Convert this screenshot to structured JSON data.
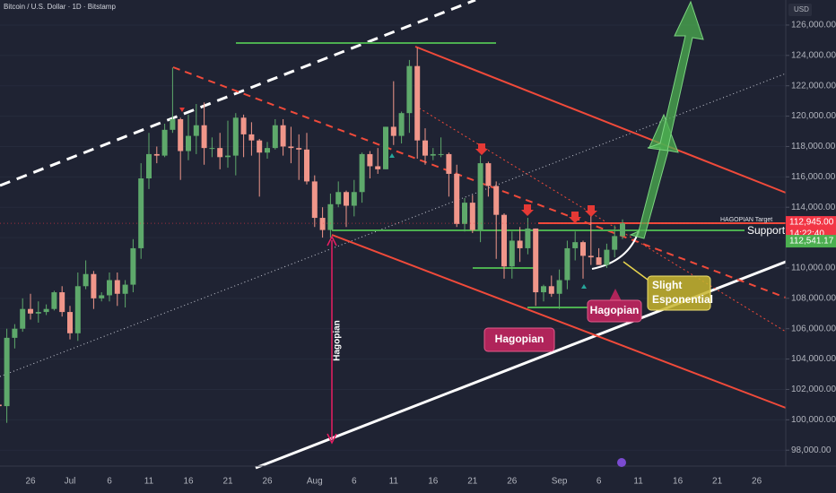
{
  "chart_data": {
    "type": "candlestick",
    "title": "Bitcoin / U.S. Dollar · 1D · Bitstamp",
    "currency": "USD",
    "categories": [
      null,
      null,
      null,
      null,
      "26",
      null,
      null,
      null,
      null,
      "Jul",
      null,
      null,
      null,
      null,
      "6",
      null,
      null,
      null,
      null,
      "11",
      null,
      null,
      null,
      null,
      "16",
      null,
      null,
      null,
      null,
      "21",
      null,
      null,
      null,
      null,
      "26",
      null,
      null,
      null,
      null,
      null,
      "Aug",
      null,
      null,
      null,
      null,
      "6",
      null,
      null,
      null,
      null,
      "11",
      null,
      null,
      null,
      null,
      "16",
      null,
      null,
      null,
      null,
      "21",
      null,
      null,
      null,
      null,
      "26",
      null,
      null,
      null,
      null,
      null,
      "Sep",
      null,
      null,
      null,
      null,
      "6",
      null,
      null,
      null,
      null,
      "11",
      null,
      null,
      null,
      null,
      "16",
      null,
      null,
      null,
      null,
      "21",
      null,
      null,
      null,
      null,
      "26",
      null,
      null,
      null,
      null
    ],
    "open": [
      101000,
      100900,
      105400,
      106000,
      107300,
      107000,
      107100,
      107300,
      108400,
      107100,
      105700,
      108800,
      109600,
      108000,
      108200,
      109200,
      108300,
      108900,
      111300,
      115900,
      117500,
      117400,
      119100,
      119800,
      117700,
      118700,
      119400,
      117900,
      117900,
      117300,
      117400,
      119900,
      118800,
      118400,
      117600,
      117900,
      119400,
      118000,
      117900,
      117800,
      115700,
      113300,
      112500,
      114200,
      115000,
      114100,
      115000,
      117500,
      116700,
      116500,
      119300,
      118700,
      120200,
      123300,
      118400,
      117400,
      117500,
      117500,
      116200,
      112900,
      114300,
      112500,
      116900,
      115400,
      113500,
      110100,
      111800,
      111300,
      112600,
      108400,
      108800,
      108300,
      109200,
      111300,
      111700,
      110800,
      110700,
      110200,
      111200,
      112100,
      null,
      null,
      null,
      null,
      null,
      null,
      null,
      null,
      null,
      null,
      null,
      null,
      null,
      null,
      null,
      null,
      null,
      null,
      null,
      null,
      null
    ],
    "high": [
      103900,
      106000,
      106300,
      108000,
      108300,
      107800,
      107600,
      108500,
      108800,
      107500,
      109700,
      110500,
      109800,
      108400,
      109700,
      109700,
      109200,
      111900,
      116900,
      118900,
      118000,
      119500,
      123200,
      119900,
      120100,
      120800,
      120900,
      118600,
      118900,
      119700,
      120200,
      120100,
      119600,
      118500,
      118300,
      119800,
      119800,
      119300,
      118800,
      118900,
      116100,
      114000,
      114900,
      115700,
      115100,
      115800,
      117600,
      117700,
      117900,
      119300,
      122300,
      120300,
      123700,
      124500,
      119200,
      117900,
      118600,
      117600,
      116800,
      114600,
      114800,
      117400,
      117000,
      115700,
      113600,
      112400,
      112700,
      113300,
      112600,
      108900,
      109500,
      109900,
      111800,
      112400,
      111800,
      113400,
      111300,
      111600,
      112800,
      113200,
      null,
      null,
      null,
      null,
      null,
      null,
      null,
      null,
      null,
      null,
      null,
      null,
      null,
      null,
      null,
      null,
      null,
      null,
      null,
      null,
      null
    ],
    "low": [
      99600,
      99800,
      104700,
      105800,
      106600,
      106400,
      106900,
      107200,
      106800,
      105300,
      105200,
      108600,
      107300,
      107800,
      107800,
      107500,
      107400,
      108400,
      110600,
      115200,
      116900,
      117300,
      118900,
      115800,
      117100,
      117500,
      116800,
      117300,
      116500,
      116600,
      116100,
      117300,
      117400,
      114700,
      117200,
      117800,
      117400,
      116900,
      115800,
      115500,
      112700,
      112000,
      112000,
      114000,
      112700,
      113400,
      114300,
      115900,
      116200,
      116500,
      118100,
      118200,
      118900,
      117200,
      116800,
      117100,
      117300,
      114700,
      112700,
      112400,
      112300,
      111700,
      114700,
      110600,
      109300,
      109300,
      110400,
      110900,
      107500,
      107800,
      108100,
      107300,
      108600,
      110500,
      109300,
      110200,
      110200,
      110000,
      110700,
      111900,
      null,
      null,
      null,
      null,
      null,
      null,
      null,
      null,
      null,
      null,
      null,
      null,
      null,
      null,
      null,
      null,
      null,
      null,
      null,
      null,
      null
    ],
    "close": [
      100900,
      105400,
      106000,
      107300,
      107000,
      107100,
      107300,
      108400,
      107100,
      105700,
      108800,
      109600,
      108000,
      108200,
      109200,
      108300,
      108900,
      111300,
      115900,
      117500,
      117400,
      119100,
      119800,
      117700,
      118700,
      119400,
      117900,
      117900,
      117300,
      117400,
      119900,
      118800,
      118400,
      117600,
      117900,
      119400,
      118000,
      117900,
      117800,
      115700,
      113300,
      112500,
      114200,
      115000,
      114100,
      115000,
      117500,
      116700,
      116500,
      119300,
      118700,
      120200,
      123300,
      118400,
      117400,
      117500,
      117500,
      116200,
      112900,
      114300,
      112500,
      116900,
      115400,
      113500,
      110100,
      111800,
      111300,
      112600,
      108400,
      108800,
      108300,
      109200,
      111300,
      111700,
      110800,
      110700,
      110200,
      111200,
      112100,
      112945,
      null,
      null,
      null,
      null,
      null,
      null,
      null,
      null,
      null,
      null,
      null,
      null,
      null,
      null,
      null,
      null,
      null,
      null,
      null,
      null,
      null
    ],
    "up_color": "#5ea96b",
    "down_color": "#f0968a",
    "ylim": [
      96950,
      127650
    ],
    "yticks": [
      {
        "value": 98000,
        "label": "98,000.00"
      },
      {
        "value": 100000,
        "label": "100,000.00"
      },
      {
        "value": 102000,
        "label": "102,000.00"
      },
      {
        "value": 104000,
        "label": "104,000.00"
      },
      {
        "value": 106000,
        "label": "106,000.00"
      },
      {
        "value": 108000,
        "label": "108,000.00"
      },
      {
        "value": 110000,
        "label": "110,000.00"
      },
      {
        "value": 112000,
        "label": "112,000.00"
      },
      {
        "value": 114000,
        "label": "114,000.00"
      },
      {
        "value": 116000,
        "label": "116,000.00"
      },
      {
        "value": 118000,
        "label": "118,000.00"
      },
      {
        "value": 120000,
        "label": "120,000.00"
      },
      {
        "value": 122000,
        "label": "122,000.00"
      },
      {
        "value": 124000,
        "label": "124,000.00"
      },
      {
        "value": 126000,
        "label": "126,000.00"
      }
    ],
    "grid": true,
    "last_price": {
      "value": 112945,
      "label": "112,945.00"
    },
    "countdown": "14:22:40",
    "support_price": {
      "value": 112541.17,
      "label": "112,541.17"
    },
    "annotations": {
      "target": "HAGOPIAN Target",
      "support": "Support",
      "vertical": "Hagopian",
      "box_1": "Hagopian",
      "box_2": "Hagopian",
      "box_3": [
        "Slight",
        "Esponential"
      ]
    }
  }
}
